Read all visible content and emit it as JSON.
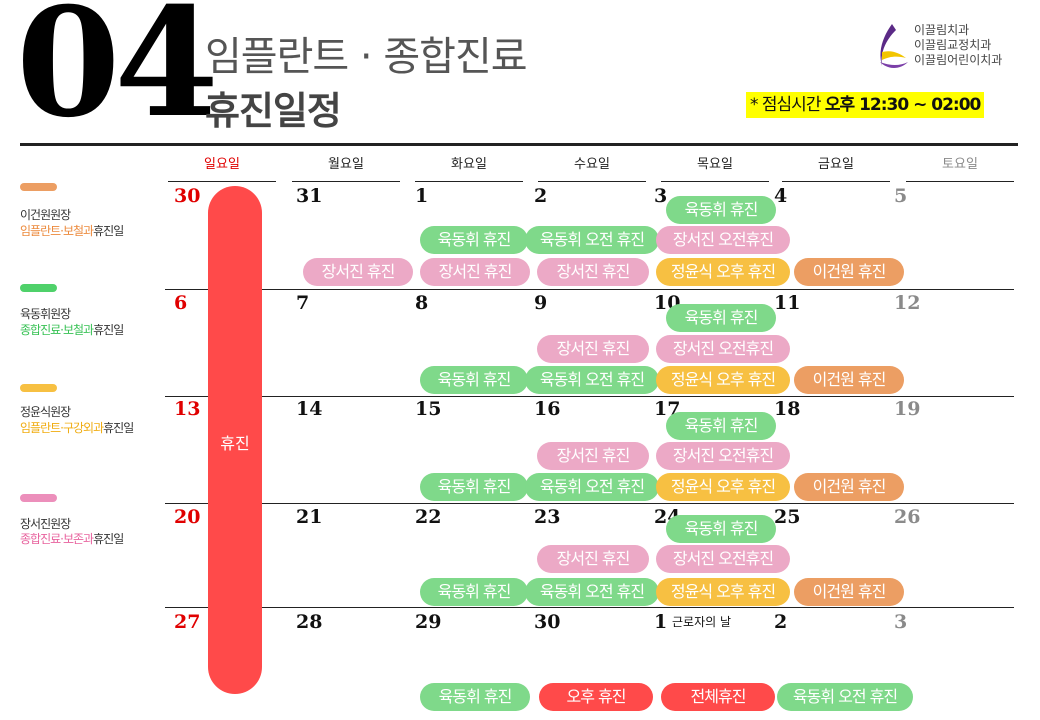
{
  "header": {
    "month": "04",
    "subtitle": "임플란트 · 종합진료",
    "title": "휴진일정",
    "clinics": [
      "이끌림치과",
      "이끌림교정치과",
      "이끌림어린이치과"
    ],
    "lunch_label": "* 점심시간 ",
    "lunch_time": "오후 12:30 ~ 02:00"
  },
  "legend": [
    {
      "name": "이건원원장",
      "desc_colored": "임플란트·보철과",
      "desc_rest": "휴진일",
      "color": "#ec9e63"
    },
    {
      "name": "육동휘원장",
      "desc_colored": "종합진료·보철과",
      "desc_rest": "휴진일",
      "color": "#4fd16a"
    },
    {
      "name": "정윤식원장",
      "desc_colored": "임플란트·구강외과",
      "desc_rest": "휴진일",
      "color": "#f7c042"
    },
    {
      "name": "장서진원장",
      "desc_colored": "종합진료·보존과",
      "desc_rest": "휴진일",
      "color": "#ec8fbb"
    }
  ],
  "weekdays": [
    "일요일",
    "월요일",
    "화요일",
    "수요일",
    "목요일",
    "금요일",
    "토요일"
  ],
  "weeks": [
    [
      "30",
      "31",
      "1",
      "2",
      "3",
      "4",
      "5"
    ],
    [
      "6",
      "7",
      "8",
      "9",
      "10",
      "11",
      "12"
    ],
    [
      "13",
      "14",
      "15",
      "16",
      "17",
      "18",
      "19"
    ],
    [
      "20",
      "21",
      "22",
      "23",
      "24",
      "25",
      "26"
    ],
    [
      "27",
      "28",
      "29",
      "30",
      "1",
      "2",
      "3"
    ]
  ],
  "holiday_note": "근로자의 날",
  "sunday_closed": "휴진",
  "pills": {
    "w1": [
      "육동휘 휴진",
      "육동휘 휴진",
      "육동휘 오전 휴진",
      "장서진 오전휴진",
      "장서진 휴진",
      "장서진 휴진",
      "장서진 휴진",
      "정윤식 오후 휴진",
      "이건원 휴진"
    ],
    "w2": [
      "육동휘 휴진",
      "장서진 휴진",
      "장서진 오전휴진",
      "육동휘 휴진",
      "육동휘 오전 휴진",
      "정윤식 오후 휴진",
      "이건원 휴진"
    ],
    "w3": [
      "육동휘 휴진",
      "장서진 휴진",
      "장서진 오전휴진",
      "육동휘 휴진",
      "육동휘 오전 휴진",
      "정윤식 오후 휴진",
      "이건원 휴진"
    ],
    "w4": [
      "육동휘 휴진",
      "장서진 휴진",
      "장서진 오전휴진",
      "육동휘 휴진",
      "육동휘 오전 휴진",
      "정윤식 오후 휴진",
      "이건원 휴진"
    ],
    "w5": [
      "육동휘 휴진",
      "오후 휴진",
      "전체휴진",
      "육동휘 오전 휴진"
    ]
  }
}
